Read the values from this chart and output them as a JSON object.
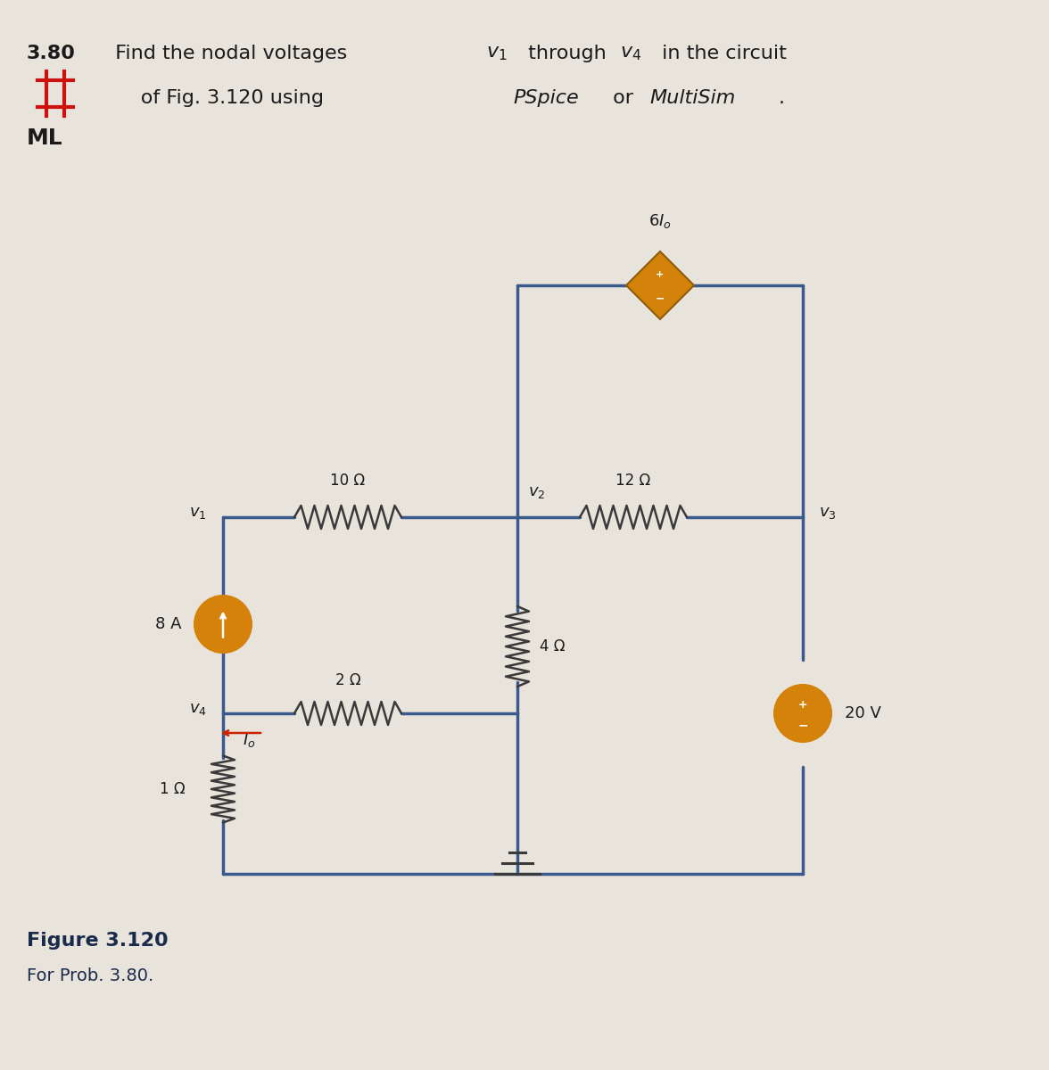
{
  "bg_color": "#e8e4dc",
  "wire_color": "#3a5a8c",
  "wire_lw": 2.5,
  "resistor_color": "#3a3a3a",
  "title_line1": "3.80  Find the nodal voltages ",
  "title_line1_bold": "3.80",
  "title_italic1": "v",
  "title_sub1": "1",
  "title_middle1": " through ",
  "title_italic2": "v",
  "title_sub2": "4",
  "title_end1": " in the circuit",
  "title_line2_start": "      of Fig. 3.120 using ",
  "title_pspice": "PSpice",
  "title_or": " or ",
  "title_multisim": "MultiSim",
  "title_period": ".",
  "fig_label": "Figure 3.120",
  "fig_sublabel": "For Prob. 3.80.",
  "node_labels": [
    "v₁",
    "v₂",
    "v₃",
    "v₄"
  ],
  "resistor_labels": [
    "10 Ω",
    "12 Ω",
    "4 Ω",
    "2 Ω",
    "1 Ω"
  ],
  "current_source_label": "8 A",
  "voltage_source_label": "20 V",
  "dep_source_label": "6Iₒ",
  "io_label": "Iₒ",
  "source_color": "#d4820a",
  "dep_source_color": "#d4820a",
  "arrow_color": "#cc2200",
  "grid_color": "#d0ccc4"
}
